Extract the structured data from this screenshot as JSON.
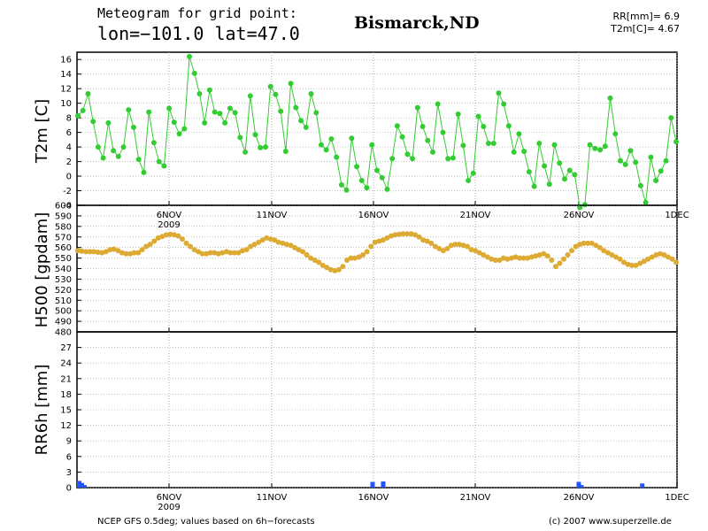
{
  "header": {
    "title": "Meteogram for grid point:",
    "coords": "lon=−101.0  lat=47.0",
    "location": "Bismarck,ND",
    "rr_label": "RR[mm]= 6.9",
    "t2m_label": "T2m[C]= 4.67"
  },
  "footer": {
    "left": "NCEP GFS 0.5deg; values based on 6h−forecasts",
    "right": "(c) 2007 www.superzelle.de"
  },
  "colors": {
    "t2m": "#33cc33",
    "h500": "#ddaa33",
    "rr": "#2255ff",
    "grid": "#999999"
  },
  "chart_data": [
    {
      "type": "line",
      "ylabel": "T2m [C]",
      "ylim": [
        -4,
        17
      ],
      "yticks": [
        "-4",
        "-2",
        "0",
        "2",
        "4",
        "6",
        "8",
        "10",
        "12",
        "14",
        "16"
      ],
      "x_axis": {
        "ticks": [
          "6NOV",
          "11NOV",
          "16NOV",
          "21NOV",
          "26NOV",
          "1DEC"
        ],
        "year": "2009"
      },
      "series": [
        {
          "values": [
            8.3,
            9,
            11.3,
            7.5,
            4,
            2.5,
            7.3,
            3.5,
            2.7,
            4,
            9.1,
            6.7,
            2.3,
            0.5,
            8.8,
            4.6,
            2,
            1.4,
            9.3,
            7.4,
            5.8,
            6.5,
            16.4,
            14.1,
            11.3,
            7.3,
            11.8,
            8.8,
            8.6,
            7.3,
            9.3,
            8.7,
            5.3,
            3.3,
            11,
            5.7,
            3.9,
            4,
            12.3,
            11.2,
            8.9,
            3.4,
            12.7,
            9.4,
            7.6,
            6.7,
            11.3,
            8.7,
            4.3,
            3.6,
            5.1,
            2.6,
            -1.2,
            -1.9,
            5.2,
            1.3,
            -0.6,
            -1.6,
            4.3,
            0.8,
            -0.2,
            -1.8,
            2.4,
            6.9,
            5.4,
            3,
            2.4,
            9.4,
            6.8,
            4.9,
            3.3,
            9.9,
            6,
            2.4,
            2.5,
            8.5,
            4.2,
            -0.6,
            0.4,
            8.2,
            6.8,
            4.5,
            4.5,
            11.4,
            9.9,
            6.9,
            3.3,
            5.8,
            3.4,
            0.6,
            -1.4,
            4.5,
            1.4,
            -1.1,
            4.3,
            1.8,
            -0.4,
            0.8,
            0.2,
            -4.3,
            -3.9,
            4.3,
            3.8,
            3.6,
            4.1,
            10.7,
            5.8,
            2.1,
            1.6,
            3.5,
            1.9,
            -1.3,
            -3.6,
            2.6,
            -0.6,
            0.7,
            2.1,
            8,
            4.7
          ]
        }
      ]
    },
    {
      "type": "scatter",
      "ylabel": "H500 [gpdam]",
      "ylim": [
        480,
        600
      ],
      "yticks": [
        "480",
        "490",
        "500",
        "510",
        "520",
        "530",
        "540",
        "550",
        "560",
        "570",
        "580",
        "590",
        "600"
      ],
      "series": [
        {
          "values": [
            557,
            556.5,
            556,
            556,
            556,
            555.5,
            555,
            556,
            558,
            558.5,
            557,
            555,
            554,
            554,
            555,
            555,
            558,
            561,
            563,
            566,
            569,
            570.5,
            572,
            572.5,
            572,
            571,
            568,
            564,
            561,
            558,
            556,
            554,
            554,
            555,
            555,
            554,
            555,
            556,
            555,
            555,
            555,
            557,
            558,
            561,
            563,
            565,
            567,
            569,
            568,
            567,
            565,
            564,
            563,
            562,
            560,
            558,
            556,
            553,
            550,
            548,
            546,
            543,
            541,
            539,
            538,
            539,
            542,
            548,
            550,
            550,
            551,
            553,
            556,
            561,
            565,
            566,
            567,
            569,
            571,
            572,
            572.5,
            573,
            573,
            573,
            572,
            570,
            567,
            566,
            564,
            561,
            559,
            557,
            559,
            562,
            563,
            563,
            562,
            561,
            558,
            557,
            555,
            553,
            551,
            549,
            548,
            548,
            550,
            549,
            550,
            551,
            550,
            550,
            550,
            551,
            552,
            553,
            554,
            552,
            548,
            542,
            545,
            549,
            553,
            557,
            561,
            563,
            564,
            564,
            564,
            562,
            560,
            557,
            555,
            553,
            551,
            549,
            546,
            544,
            543,
            543,
            545,
            547,
            549,
            551,
            553,
            554,
            553,
            551,
            549,
            546
          ]
        }
      ]
    },
    {
      "type": "bar",
      "ylabel": "RR6h [mm]",
      "ylim": [
        0,
        30
      ],
      "yticks": [
        "0",
        "3",
        "6",
        "9",
        "12",
        "15",
        "18",
        "21",
        "24",
        "27"
      ],
      "series": [
        {
          "values": [
            1.3,
            0.9,
            0.5,
            0,
            0,
            0,
            0,
            0,
            0,
            0,
            0,
            0,
            0,
            0,
            0,
            0,
            0,
            0,
            0,
            0,
            0,
            0,
            0,
            0,
            0,
            0,
            0,
            0,
            0,
            0,
            0,
            0,
            0,
            0,
            0,
            0,
            0,
            0,
            0,
            0,
            0,
            0,
            0,
            0,
            0,
            0,
            0,
            0,
            0,
            0,
            0,
            0,
            0,
            0,
            0,
            0,
            0,
            0,
            0,
            0,
            0,
            0,
            0,
            0,
            0,
            0,
            0,
            0,
            0,
            0,
            0,
            0,
            0,
            0,
            0,
            0,
            0,
            0,
            0,
            0,
            0,
            0,
            0,
            0,
            0,
            0,
            0,
            0,
            0,
            0,
            0,
            0,
            0,
            0,
            0,
            0,
            0,
            0,
            0,
            0,
            0,
            0,
            0,
            0,
            0,
            0,
            0,
            0,
            0,
            0,
            0,
            1.1,
            0,
            0,
            0,
            1.2,
            0,
            0,
            0,
            0,
            0,
            0,
            0,
            0,
            0,
            0,
            0,
            0,
            0,
            0,
            0,
            0,
            0,
            0,
            0,
            0,
            0,
            0,
            0,
            0,
            0,
            0,
            0,
            0,
            0,
            0,
            0,
            0,
            0,
            0,
            0,
            0,
            0,
            0,
            0,
            0,
            0,
            0,
            0,
            0,
            0,
            0,
            0,
            0,
            0,
            0,
            0,
            0,
            0,
            0,
            0,
            0,
            0,
            0,
            0,
            0,
            0,
            0,
            0,
            0,
            0,
            0,
            0,
            0,
            0,
            0,
            0,
            0,
            0,
            1.1,
            0.5,
            0,
            0,
            0,
            0,
            0,
            0,
            0,
            0,
            0,
            0,
            0,
            0,
            0,
            0,
            0,
            0,
            0,
            0,
            0,
            0,
            0,
            0,
            0.8,
            0,
            0,
            0,
            0,
            0,
            0,
            0,
            0,
            0,
            0,
            0,
            0,
            0
          ]
        }
      ]
    }
  ]
}
